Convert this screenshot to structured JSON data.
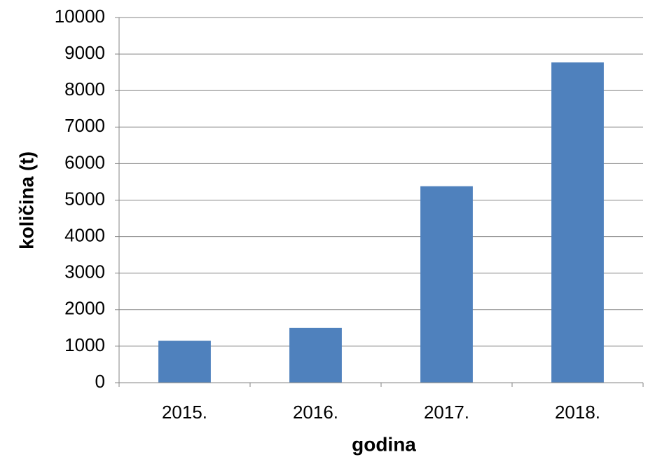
{
  "chart_data": {
    "type": "bar",
    "x_label": "godina",
    "y_label": "količina (t)",
    "categories": [
      "2015.",
      "2016.",
      "2017.",
      "2018."
    ],
    "values": [
      1150,
      1500,
      5380,
      8770
    ],
    "color": "#4f81bd",
    "ylim": [
      0,
      10000
    ],
    "yticks": [
      0,
      1000,
      2000,
      3000,
      4000,
      5000,
      6000,
      7000,
      8000,
      9000,
      10000
    ],
    "grid": true
  }
}
